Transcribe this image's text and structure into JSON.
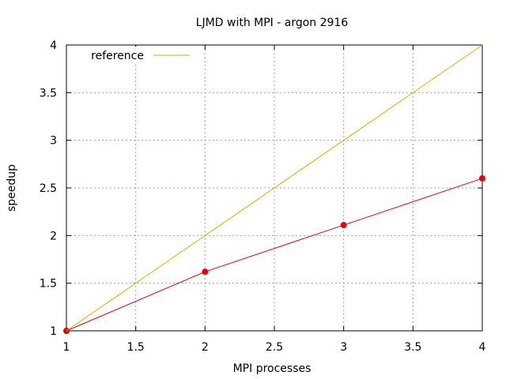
{
  "chart_data": {
    "type": "line",
    "title": "LJMD with MPI - argon 2916",
    "xlabel": "MPI processes",
    "ylabel": "speedup",
    "xlim": [
      1,
      4
    ],
    "ylim": [
      1,
      4
    ],
    "x_ticks": [
      "1",
      "1.5",
      "2",
      "2.5",
      "3",
      "3.5",
      "4"
    ],
    "y_ticks": [
      "1",
      "1.5",
      "2",
      "2.5",
      "3",
      "3.5",
      "4"
    ],
    "grid": true,
    "legend_position": "top-left",
    "series": [
      {
        "name": "",
        "color": "#e8000b",
        "markers": true,
        "x": [
          1,
          2,
          3,
          4
        ],
        "y": [
          1.0,
          1.62,
          2.11,
          2.6
        ]
      },
      {
        "name": "reference",
        "color": "#c8b400",
        "markers": false,
        "x": [
          1,
          4
        ],
        "y": [
          1,
          4
        ]
      }
    ]
  }
}
